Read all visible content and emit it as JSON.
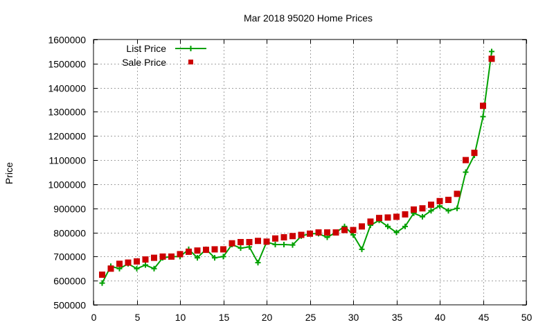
{
  "chart_data": {
    "type": "line",
    "title": "Mar 2018 95020 Home Prices",
    "xlabel": "",
    "ylabel": "Price",
    "xlim": [
      0,
      50
    ],
    "ylim": [
      500000,
      1600000
    ],
    "x_ticks": [
      0,
      5,
      10,
      15,
      20,
      25,
      30,
      35,
      40,
      45,
      50
    ],
    "y_ticks": [
      500000,
      600000,
      700000,
      800000,
      900000,
      1000000,
      1100000,
      1200000,
      1300000,
      1400000,
      1500000,
      1600000
    ],
    "grid": true,
    "legend_position": "top-left",
    "series": [
      {
        "name": "List Price",
        "style": "linespoints",
        "marker": "plus",
        "color": "#00a000",
        "x": [
          1,
          2,
          3,
          4,
          5,
          6,
          7,
          8,
          9,
          10,
          11,
          12,
          13,
          14,
          15,
          16,
          17,
          18,
          19,
          20,
          21,
          22,
          23,
          24,
          25,
          26,
          27,
          28,
          29,
          30,
          31,
          32,
          33,
          34,
          35,
          36,
          37,
          38,
          39,
          40,
          41,
          42,
          43,
          44,
          45,
          46
        ],
        "values": [
          590000,
          660000,
          650000,
          670000,
          650000,
          665000,
          650000,
          695000,
          700000,
          700000,
          730000,
          695000,
          730000,
          695000,
          700000,
          750000,
          735000,
          740000,
          675000,
          760000,
          750000,
          750000,
          748000,
          785000,
          795000,
          795000,
          780000,
          800000,
          825000,
          790000,
          730000,
          830000,
          850000,
          825000,
          800000,
          825000,
          880000,
          865000,
          890000,
          910000,
          890000,
          900000,
          1050000,
          1120000,
          1280000,
          1550000
        ]
      },
      {
        "name": "Sale Price",
        "style": "points",
        "marker": "square",
        "color": "#cc0000",
        "x": [
          1,
          2,
          3,
          4,
          5,
          6,
          7,
          8,
          9,
          10,
          11,
          12,
          13,
          14,
          15,
          16,
          17,
          18,
          19,
          20,
          21,
          22,
          23,
          24,
          25,
          26,
          27,
          28,
          29,
          30,
          31,
          32,
          33,
          34,
          35,
          36,
          37,
          38,
          39,
          40,
          41,
          42,
          43,
          44,
          45,
          46
        ],
        "values": [
          625000,
          650000,
          670000,
          675000,
          680000,
          688000,
          695000,
          700000,
          700000,
          710000,
          720000,
          725000,
          728000,
          730000,
          730000,
          755000,
          760000,
          760000,
          765000,
          762000,
          775000,
          780000,
          785000,
          790000,
          795000,
          800000,
          800000,
          800000,
          810000,
          810000,
          825000,
          845000,
          860000,
          862000,
          865000,
          875000,
          895000,
          900000,
          915000,
          930000,
          935000,
          960000,
          1100000,
          1130000,
          1325000,
          1520000
        ]
      }
    ]
  }
}
